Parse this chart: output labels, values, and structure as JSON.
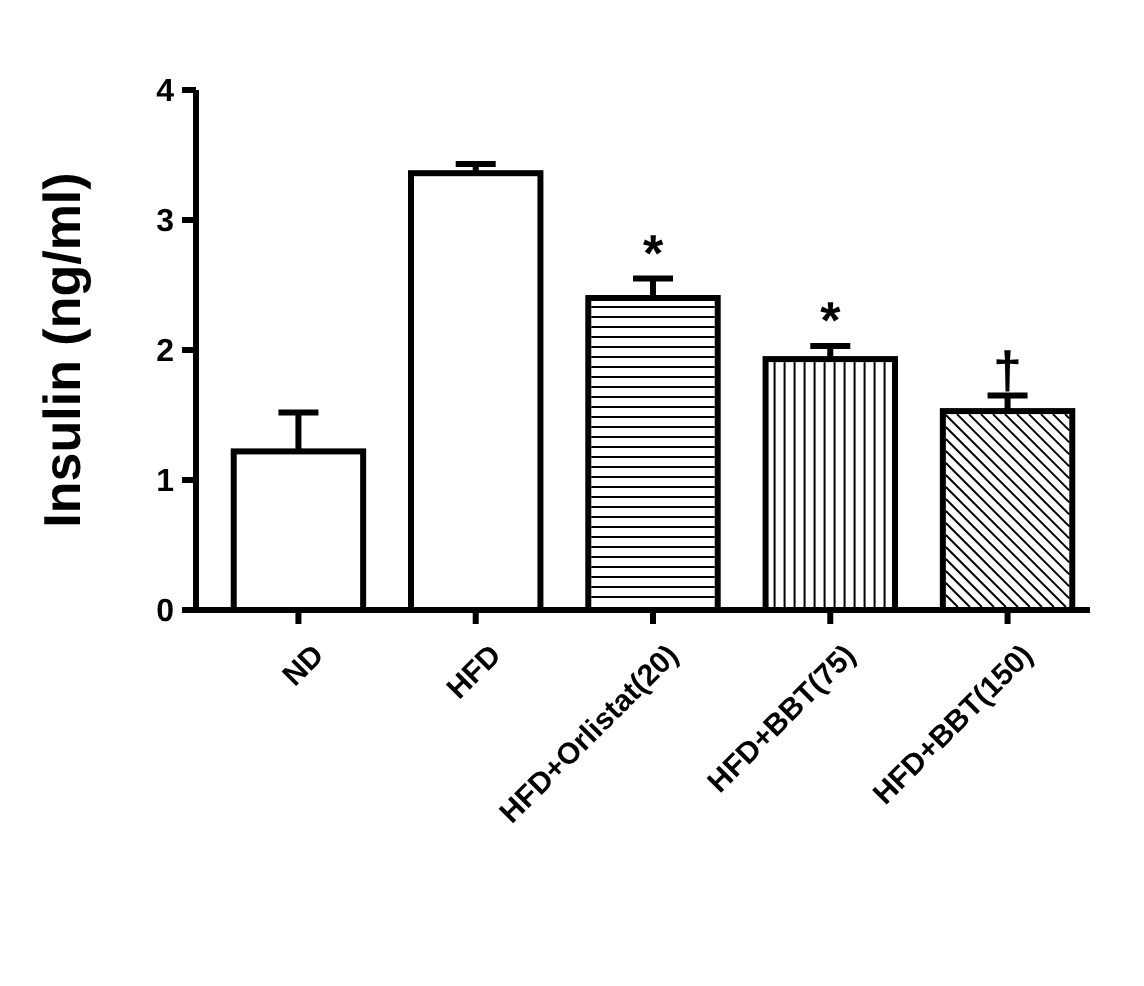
{
  "chart_data": {
    "type": "bar",
    "ylabel": "Insulin (ng/ml)",
    "categories": [
      "ND",
      "HFD",
      "HFD+Orlistat(20)",
      "HFD+BBT(75)",
      "HFD+BBT(150)"
    ],
    "values": [
      1.22,
      3.36,
      2.4,
      1.93,
      1.53
    ],
    "errors": [
      0.3,
      0.07,
      0.15,
      0.1,
      0.12
    ],
    "colors": [
      "#ffffff",
      "#ffffff",
      "#ffffff",
      "#ffffff",
      "#ffffff"
    ],
    "ylim": [
      0,
      4
    ],
    "yticks": [
      0,
      1,
      2,
      3,
      4
    ],
    "grid": false,
    "annotations": [
      {
        "text": "*",
        "x": "HFD+Orlistat(20)",
        "y": 2.55
      },
      {
        "text": "*",
        "x": "HFD+BBT(75)",
        "y": 2.03
      },
      {
        "text": "†",
        "x": "HFD+BBT(150)",
        "y": 1.65
      }
    ]
  }
}
